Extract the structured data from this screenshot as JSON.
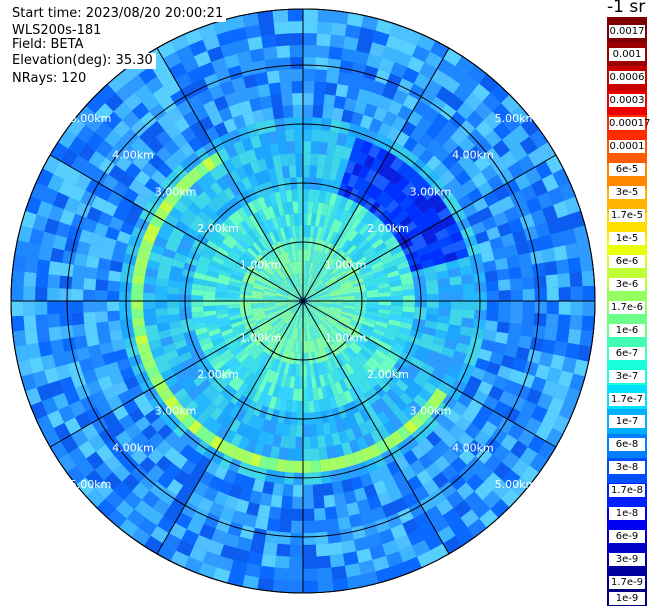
{
  "info": {
    "start_time": "Start time: 2023/08/20 20:00:21",
    "instrument": "WLS200s-181",
    "field": "Field: BETA",
    "elevation": "Elevation(deg): 35.30",
    "nrays": "NRays: 120"
  },
  "colorbar": {
    "unit": "-1 sr",
    "labels": [
      "0.0017",
      "0.001",
      "0.0006",
      "0.0003",
      "0.00017",
      "0.0001",
      "6e-5",
      "3e-5",
      "1.7e-5",
      "1e-5",
      "6e-6",
      "3e-6",
      "1.7e-6",
      "1e-6",
      "6e-7",
      "3e-7",
      "1.7e-7",
      "1e-7",
      "6e-8",
      "3e-8",
      "1.7e-8",
      "1e-8",
      "6e-9",
      "3e-9",
      "1.7e-9",
      "1e-9"
    ],
    "colors": [
      "#7f0000",
      "#9a0000",
      "#c80000",
      "#ee0000",
      "#ff2a00",
      "#ff5a00",
      "#ff8800",
      "#ffb400",
      "#ffe000",
      "#eaff0c",
      "#c0ff36",
      "#96ff60",
      "#6cff8a",
      "#42ffb4",
      "#18ffde",
      "#00e0ff",
      "#00b0ff",
      "#0080ff",
      "#0050ff",
      "#0020ff",
      "#0000f0",
      "#0000c8",
      "#0000a0",
      "#000080"
    ]
  },
  "range_labels": [
    "1.00km",
    "2.00km",
    "3.00km",
    "4.00km",
    "5.00km"
  ]
}
